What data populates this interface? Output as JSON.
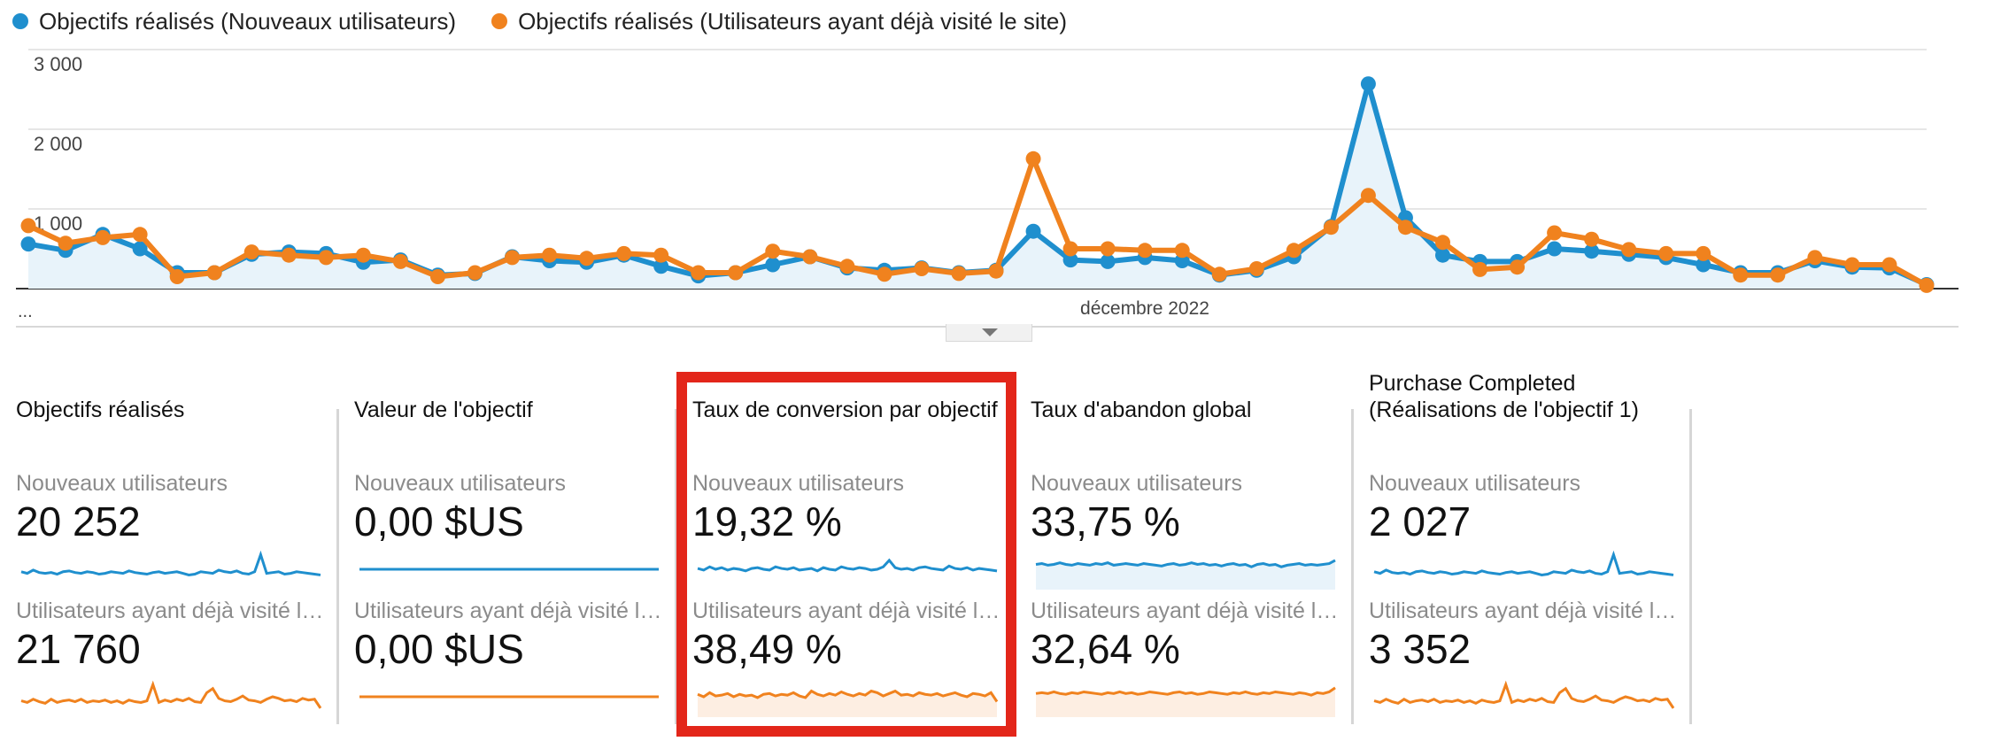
{
  "colors": {
    "new_users": "#1f8fce",
    "returning_users": "#f0821e"
  },
  "chart_data": {
    "type": "line",
    "series": [
      {
        "name": "Objectifs réalisés (Nouveaux utilisateurs)",
        "values": [
          560,
          480,
          680,
          500,
          200,
          200,
          430,
          460,
          440,
          330,
          360,
          170,
          190,
          400,
          350,
          330,
          420,
          280,
          160,
          200,
          300,
          400,
          260,
          230,
          260,
          200,
          230,
          720,
          360,
          340,
          390,
          350,
          170,
          230,
          400,
          780,
          2570,
          890,
          420,
          340,
          340,
          500,
          470,
          430,
          390,
          300,
          200,
          200,
          350,
          270,
          260,
          50
        ]
      },
      {
        "name": "Objectifs réalisés (Utilisateurs ayant déjà visité le site)",
        "values": [
          790,
          570,
          640,
          680,
          150,
          200,
          460,
          420,
          390,
          420,
          340,
          150,
          200,
          390,
          420,
          380,
          440,
          420,
          200,
          200,
          470,
          400,
          280,
          180,
          250,
          190,
          220,
          1630,
          500,
          500,
          480,
          480,
          180,
          250,
          480,
          770,
          1170,
          770,
          580,
          240,
          270,
          700,
          620,
          490,
          440,
          440,
          170,
          170,
          390,
          300,
          300,
          40
        ]
      }
    ],
    "x_tick_labels": [
      "...",
      "décembre 2022"
    ],
    "y_ticks": [
      1000,
      2000,
      3000
    ],
    "y_tick_labels": [
      "1 000",
      "2 000",
      "3 000"
    ],
    "ylim": [
      0,
      3000
    ],
    "grid": true,
    "legend_position": "top"
  },
  "legend": {
    "new_users": "Objectifs réalisés (Nouveaux utilisateurs)",
    "returning_users": "Objectifs réalisés (Utilisateurs ayant déjà visité le site)"
  },
  "cards": [
    {
      "title": "Objectifs réalisés",
      "new_label": "Nouveaux utilisateurs",
      "new_value": "20 252",
      "ret_label": "Utilisateurs ayant déjà visité le site",
      "ret_value": "21 760",
      "spark_new": [
        44,
        40,
        48,
        42,
        40,
        42,
        38,
        44,
        46,
        42,
        40,
        44,
        42,
        38,
        40,
        44,
        42,
        40,
        46,
        42,
        40,
        38,
        42,
        44,
        40,
        42,
        44,
        40,
        36,
        38,
        44,
        42,
        40,
        48,
        44,
        42,
        46,
        40,
        38,
        44,
        86,
        40,
        42,
        44,
        38,
        40,
        44,
        42,
        40,
        38,
        36
      ],
      "spark_ret": [
        40,
        36,
        44,
        38,
        34,
        44,
        36,
        40,
        42,
        38,
        44,
        36,
        40,
        38,
        42,
        36,
        40,
        34,
        42,
        38,
        36,
        40,
        80,
        36,
        42,
        38,
        44,
        40,
        46,
        38,
        36,
        60,
        70,
        46,
        40,
        38,
        44,
        52,
        42,
        40,
        36,
        44,
        50,
        46,
        40,
        42,
        38,
        46,
        42,
        44,
        22
      ]
    },
    {
      "title": "Valeur de l'objectif",
      "new_label": "Nouveaux utilisateurs",
      "new_value": "0,00 $US",
      "ret_label": "Utilisateurs ayant déjà visité le site",
      "ret_value": "0,00 $US",
      "spark_new": [
        50,
        50
      ],
      "spark_ret": [
        50,
        50
      ]
    },
    {
      "title": "Taux de conversion par objectif",
      "new_label": "Nouveaux utilisateurs",
      "new_value": "19,32 %",
      "ret_label": "Utilisateurs ayant déjà visité le site",
      "ret_value": "38,49 %",
      "spark_new": [
        52,
        48,
        56,
        50,
        54,
        48,
        52,
        50,
        46,
        52,
        54,
        50,
        48,
        56,
        52,
        50,
        54,
        48,
        50,
        52,
        46,
        54,
        50,
        48,
        56,
        52,
        50,
        54,
        52,
        48,
        50,
        56,
        72,
        54,
        50,
        52,
        48,
        54,
        56,
        52,
        50,
        48,
        58,
        52,
        50,
        54,
        48,
        52,
        50,
        48,
        46
      ],
      "spark_ret": [
        56,
        50,
        60,
        52,
        54,
        58,
        50,
        56,
        52,
        54,
        48,
        56,
        58,
        52,
        56,
        54,
        60,
        52,
        48,
        64,
        56,
        52,
        58,
        54,
        62,
        56,
        52,
        58,
        54,
        64,
        60,
        52,
        58,
        64,
        54,
        56,
        52,
        60,
        56,
        54,
        58,
        52,
        56,
        60,
        54,
        50,
        58,
        56,
        52,
        60,
        38
      ]
    },
    {
      "title": "Taux d'abandon global",
      "new_label": "Nouveaux utilisateurs",
      "new_value": "33,75 %",
      "ret_label": "Utilisateurs ayant déjà visité le site",
      "ret_value": "32,64 %",
      "spark_new": [
        62,
        64,
        60,
        62,
        66,
        62,
        60,
        64,
        62,
        60,
        64,
        62,
        66,
        60,
        62,
        64,
        62,
        60,
        64,
        62,
        60,
        58,
        62,
        64,
        60,
        62,
        66,
        62,
        64,
        60,
        62,
        58,
        62,
        64,
        60,
        62,
        56,
        62,
        64,
        60,
        62,
        56,
        60,
        62,
        64,
        60,
        62,
        60,
        62,
        64,
        72
      ],
      "spark_ret": [
        58,
        60,
        58,
        62,
        58,
        56,
        60,
        58,
        62,
        60,
        58,
        56,
        60,
        58,
        62,
        58,
        60,
        56,
        58,
        62,
        60,
        58,
        56,
        60,
        62,
        58,
        60,
        56,
        58,
        62,
        60,
        58,
        56,
        60,
        58,
        62,
        58,
        56,
        60,
        58,
        62,
        60,
        58,
        56,
        60,
        58,
        54,
        60,
        58,
        62,
        72
      ]
    },
    {
      "title": "Purchase Completed (Réalisations de l'objectif 1)",
      "new_label": "Nouveaux utilisateurs",
      "new_value": "2 027",
      "ret_label": "Utilisateurs ayant déjà visité le site",
      "ret_value": "3 352",
      "spark_new": [
        44,
        40,
        48,
        42,
        40,
        42,
        38,
        44,
        46,
        42,
        40,
        44,
        42,
        38,
        40,
        44,
        42,
        40,
        46,
        42,
        40,
        38,
        42,
        44,
        40,
        42,
        44,
        40,
        36,
        38,
        44,
        42,
        40,
        48,
        44,
        42,
        46,
        40,
        38,
        44,
        86,
        40,
        42,
        44,
        38,
        40,
        44,
        42,
        40,
        38,
        36
      ],
      "spark_ret": [
        40,
        36,
        44,
        38,
        34,
        44,
        36,
        40,
        42,
        38,
        44,
        36,
        40,
        38,
        42,
        36,
        40,
        34,
        42,
        38,
        36,
        40,
        80,
        36,
        42,
        38,
        44,
        40,
        46,
        38,
        36,
        60,
        70,
        46,
        40,
        38,
        44,
        52,
        42,
        40,
        36,
        44,
        50,
        46,
        40,
        42,
        38,
        46,
        42,
        44,
        22
      ]
    }
  ]
}
